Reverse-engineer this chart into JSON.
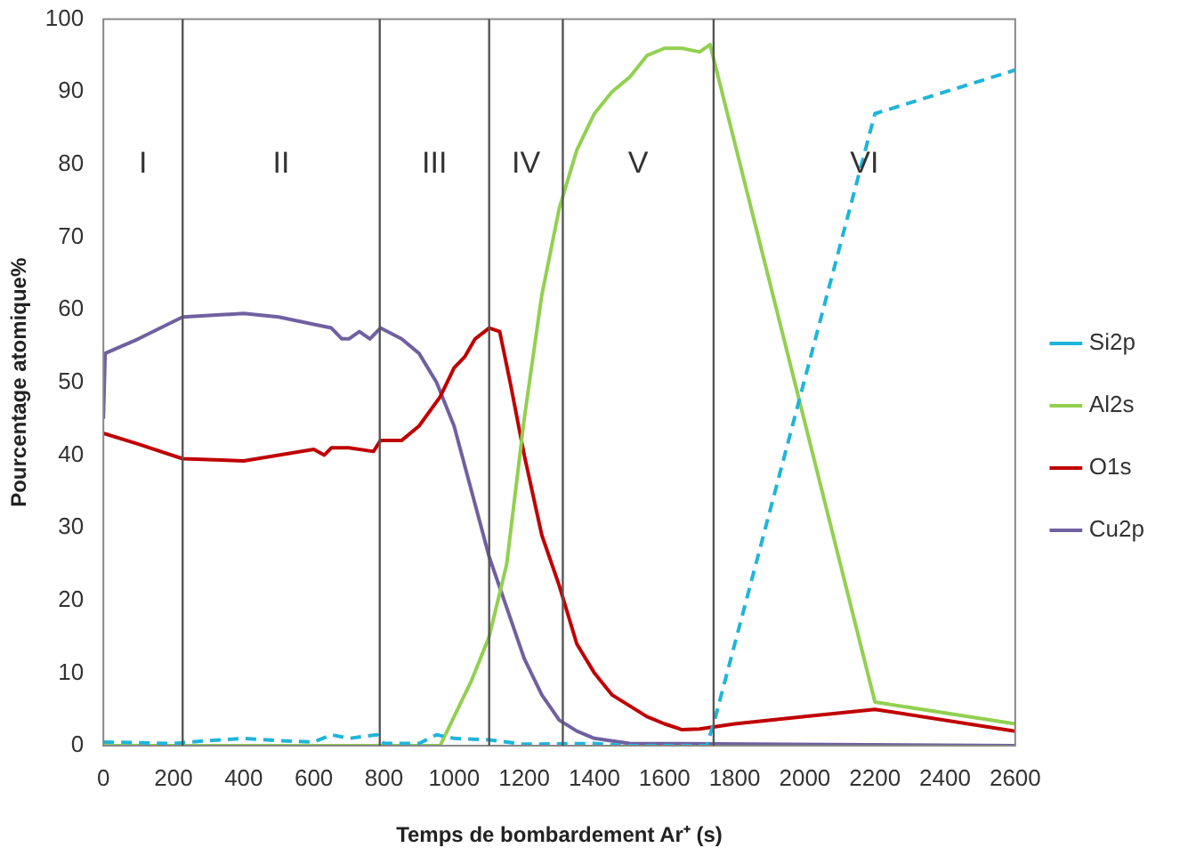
{
  "chart_data": {
    "type": "line",
    "xlabel": "Temps de bombardement Ar⁺ (s)",
    "ylabel": "Pourcentage atomique%",
    "xlim": [
      0,
      2600
    ],
    "xticks": [
      0,
      200,
      400,
      600,
      800,
      1000,
      1200,
      1400,
      1600,
      1800,
      2000,
      2200,
      2400,
      2600
    ],
    "ylim": [
      0,
      100
    ],
    "yticks": [
      0,
      10,
      20,
      30,
      40,
      50,
      60,
      70,
      80,
      90,
      100
    ],
    "grid": false,
    "legend": "right",
    "marker": "none",
    "series": [
      {
        "name": "Si2p",
        "color": "#1fb5d9",
        "line_style": "dashed",
        "x": [
          0,
          200,
          300,
          400,
          500,
          600,
          650,
          700,
          780,
          800,
          900,
          950,
          1000,
          1100,
          1200,
          1400,
          1500,
          1720,
          1740,
          2200,
          2600
        ],
        "values": [
          0.5,
          0.3,
          0.7,
          1,
          0.7,
          0.5,
          1.5,
          1,
          1.5,
          0.3,
          0.3,
          1.5,
          1,
          0.8,
          0.2,
          0.3,
          0,
          0,
          3,
          87,
          93
        ]
      },
      {
        "name": "Al2s",
        "color": "#92d050",
        "x": [
          0,
          960,
          1000,
          1050,
          1100,
          1150,
          1200,
          1250,
          1300,
          1350,
          1400,
          1450,
          1500,
          1550,
          1600,
          1650,
          1700,
          1730,
          2200,
          2600
        ],
        "values": [
          0,
          0,
          4,
          9,
          15,
          25,
          45,
          62,
          74,
          82,
          87,
          90,
          92,
          95,
          96,
          96,
          95.5,
          96.5,
          6,
          3
        ]
      },
      {
        "name": "O1s",
        "color": "#c00000",
        "x": [
          0,
          100,
          226,
          400,
          500,
          600,
          630,
          650,
          700,
          770,
          790,
          850,
          900,
          960,
          1000,
          1030,
          1060,
          1100,
          1130,
          1160,
          1200,
          1250,
          1300,
          1350,
          1400,
          1450,
          1500,
          1550,
          1600,
          1650,
          1700,
          1800,
          2000,
          2200,
          2600
        ],
        "values": [
          43,
          41.5,
          39.5,
          39.2,
          40,
          40.8,
          40,
          41,
          41,
          40.5,
          42,
          42,
          44,
          48,
          52,
          53.5,
          56,
          57.5,
          57,
          50,
          40,
          29,
          22,
          14,
          10,
          7,
          5.5,
          4,
          3,
          2.2,
          2.3,
          3,
          4,
          5,
          2
        ]
      },
      {
        "name": "Cu2p",
        "color": "#7060a0",
        "x": [
          0,
          5,
          100,
          226,
          400,
          500,
          600,
          650,
          680,
          700,
          730,
          760,
          790,
          850,
          900,
          950,
          1000,
          1050,
          1100,
          1150,
          1200,
          1250,
          1300,
          1350,
          1400,
          1500,
          2600
        ],
        "values": [
          45,
          54,
          56,
          59,
          59.5,
          59,
          58,
          57.5,
          56,
          56,
          57,
          56,
          57.5,
          56,
          54,
          50,
          44,
          35,
          26,
          19,
          12,
          7,
          3.5,
          2,
          1,
          0.3,
          0
        ]
      }
    ],
    "ref_lines": [
      {
        "axis": "x",
        "value": 226,
        "color": "#555555"
      },
      {
        "axis": "x",
        "value": 788,
        "color": "#555555"
      },
      {
        "axis": "x",
        "value": 1100,
        "color": "#555555"
      },
      {
        "axis": "x",
        "value": 1310,
        "color": "#555555"
      },
      {
        "axis": "x",
        "value": 1740,
        "color": "#555555"
      }
    ],
    "annotations": [
      "I",
      "II",
      "III",
      "IV",
      "V",
      "VI"
    ]
  }
}
